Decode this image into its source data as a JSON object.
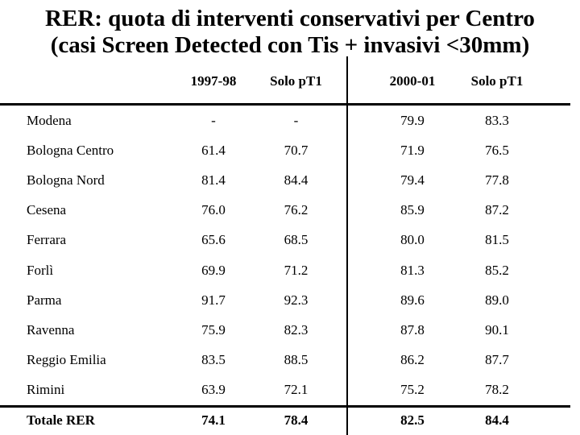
{
  "slide": {
    "title_line1": "RER: quota di interventi conservativi per Centro",
    "title_line2": "(casi Screen Detected con Tis + invasivi <30mm)"
  },
  "table": {
    "headers": [
      "1997-98",
      "Solo pT1",
      "2000-01",
      "Solo pT1"
    ],
    "rows": [
      {
        "label": "Modena",
        "values": [
          "-",
          "-",
          "79.9",
          "83.3"
        ]
      },
      {
        "label": "Bologna Centro",
        "values": [
          "61.4",
          "70.7",
          "71.9",
          "76.5"
        ]
      },
      {
        "label": "Bologna Nord",
        "values": [
          "81.4",
          "84.4",
          "79.4",
          "77.8"
        ]
      },
      {
        "label": "Cesena",
        "values": [
          "76.0",
          "76.2",
          "85.9",
          "87.2"
        ]
      },
      {
        "label": "Ferrara",
        "values": [
          "65.6",
          "68.5",
          "80.0",
          "81.5"
        ]
      },
      {
        "label": "Forlì",
        "values": [
          "69.9",
          "71.2",
          "81.3",
          "85.2"
        ]
      },
      {
        "label": "Parma",
        "values": [
          "91.7",
          "92.3",
          "89.6",
          "89.0"
        ]
      },
      {
        "label": "Ravenna",
        "values": [
          "75.9",
          "82.3",
          "87.8",
          "90.1"
        ]
      },
      {
        "label": "Reggio Emilia",
        "values": [
          "83.5",
          "88.5",
          "86.2",
          "87.7"
        ]
      },
      {
        "label": "Rimini",
        "values": [
          "63.9",
          "72.1",
          "75.2",
          "78.2"
        ]
      }
    ],
    "total_row": {
      "label": "Totale RER",
      "values": [
        "74.1",
        "78.4",
        "82.5",
        "84.4"
      ]
    }
  },
  "colors": {
    "background": "#ffffff",
    "text": "#000000",
    "line": "#000000"
  }
}
